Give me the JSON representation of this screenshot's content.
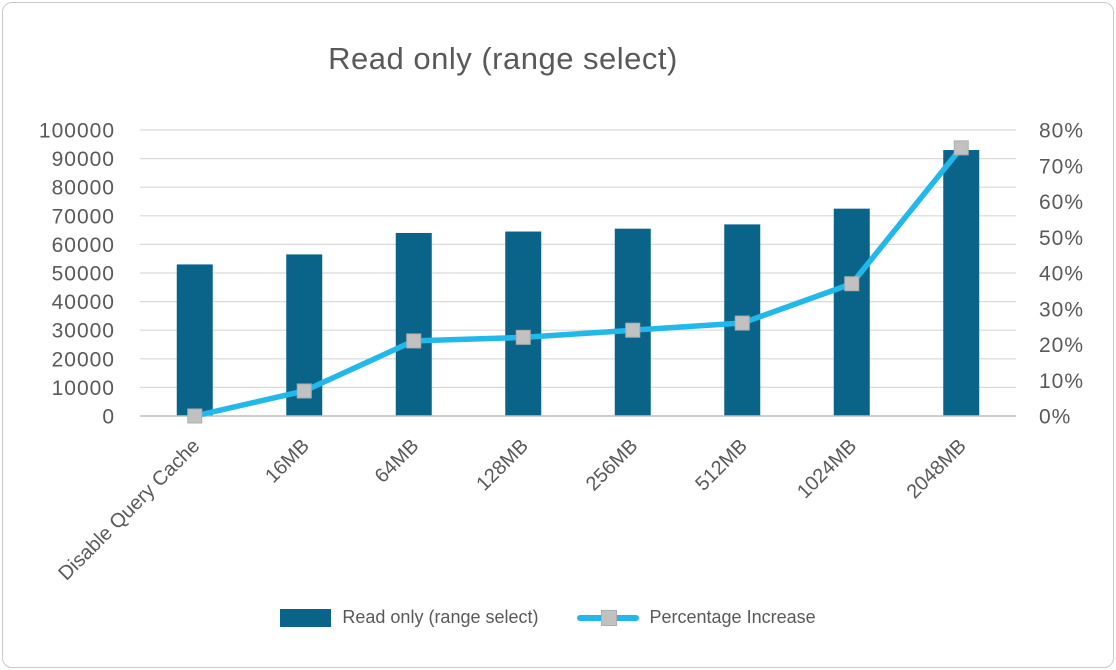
{
  "title": "Read only (range select)",
  "chart_data": {
    "type": "combo-bar-line",
    "title": "Read only (range select)",
    "categories": [
      "Disable Query Cache",
      "16MB",
      "64MB",
      "128MB",
      "256MB",
      "512MB",
      "1024MB",
      "2048MB"
    ],
    "series": [
      {
        "name": "Read only (range select)",
        "type": "bar",
        "axis": "left",
        "values": [
          53000,
          56500,
          64000,
          64500,
          65500,
          67000,
          72500,
          93000
        ]
      },
      {
        "name": "Percentage Increase",
        "type": "line",
        "axis": "right",
        "unit": "%",
        "marker": "square",
        "values": [
          0,
          7,
          21,
          22,
          24,
          26,
          37,
          75
        ]
      }
    ],
    "left_axis": {
      "min": 0,
      "max": 100000,
      "step": 10000,
      "tick_labels": [
        "100000",
        "90000",
        "80000",
        "70000",
        "60000",
        "50000",
        "40000",
        "30000",
        "20000",
        "10000",
        "0"
      ]
    },
    "right_axis": {
      "min": 0,
      "max": 80,
      "step": 10,
      "tick_labels": [
        "80%",
        "70%",
        "60%",
        "50%",
        "40%",
        "30%",
        "20%",
        "10%",
        "0%"
      ]
    },
    "gridlines": true,
    "legend_position": "bottom"
  },
  "legend": {
    "items": [
      {
        "label": "Read only (range select)",
        "swatch": "bar"
      },
      {
        "label": "Percentage Increase",
        "swatch": "line-marker"
      }
    ]
  },
  "colors": {
    "bar": "#0a648a",
    "line": "#22b8ea",
    "marker": "#c1c1c1",
    "marker_border": "#adadad",
    "grid": "#d9d9d9",
    "axis_line": "#bfbfbf",
    "text": "#595959",
    "frame_border": "#c9c9c9"
  }
}
